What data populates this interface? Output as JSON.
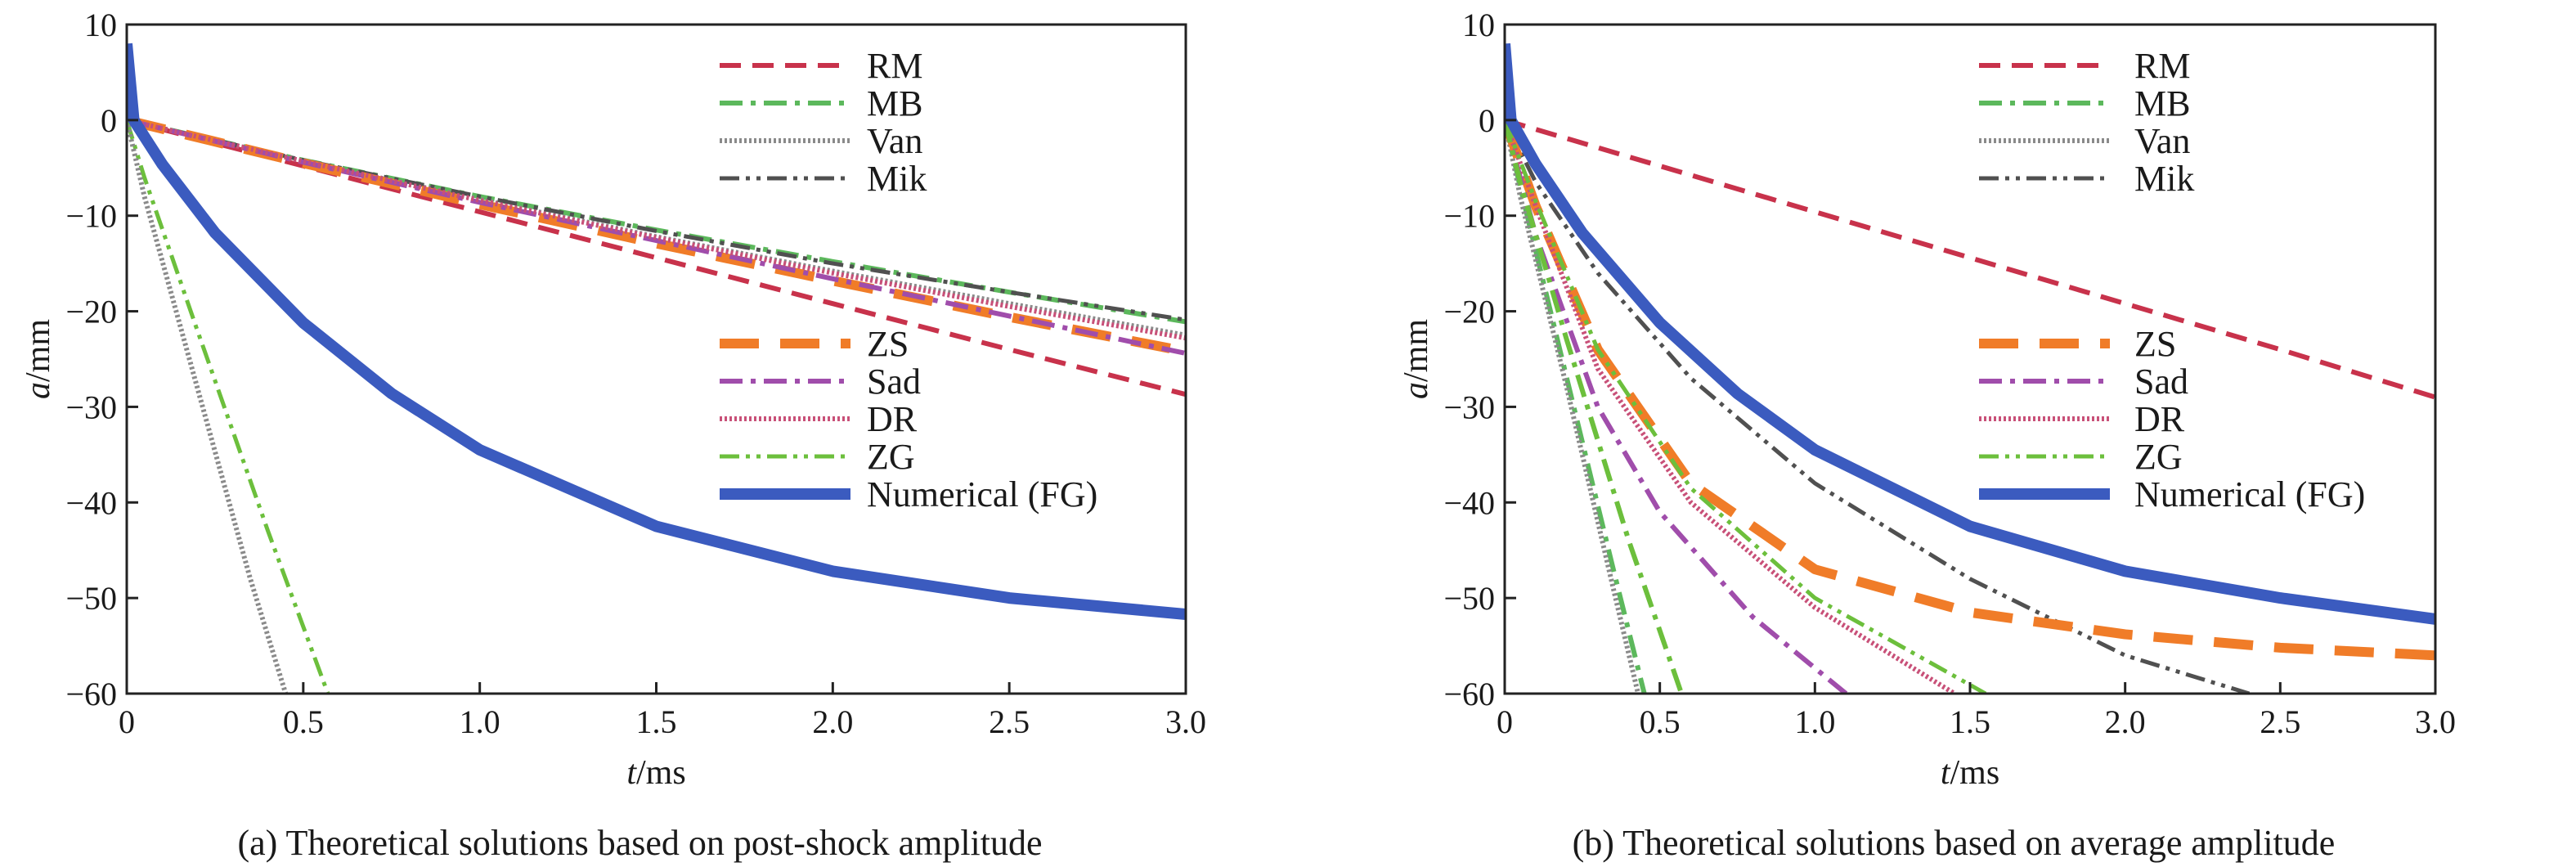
{
  "chart_data": [
    {
      "type": "line",
      "caption": "(a) Theoretical solutions based on post-shock amplitude",
      "xlabel_italic": "t",
      "xlabel_unit": "/ms",
      "ylabel_italic": "a",
      "ylabel_unit": "/mm",
      "xlim": [
        0,
        3.0
      ],
      "ylim": [
        -60,
        10
      ],
      "xticks": [
        "0",
        "0.5",
        "1.0",
        "1.5",
        "2.0",
        "2.5",
        "3.0"
      ],
      "yticks": [
        "10",
        "0",
        "−10",
        "−20",
        "−30",
        "−40",
        "−50",
        "−60"
      ],
      "grid": false,
      "legend_groups": [
        {
          "placement": "top-right",
          "entries": [
            "RM",
            "MB",
            "Van",
            "Mik"
          ]
        },
        {
          "placement": "center-right",
          "entries": [
            "ZS",
            "Sad",
            "DR",
            "ZG",
            "Numerical (FG)"
          ]
        }
      ],
      "series": [
        {
          "name": "RM",
          "color": "#c8324b",
          "style": "dashed",
          "x": [
            0,
            0.5,
            1.0,
            1.5,
            2.0,
            2.5,
            3.0
          ],
          "y": [
            0,
            -4.8,
            -9.6,
            -14.4,
            -19.2,
            -24,
            -28.7
          ]
        },
        {
          "name": "MB",
          "color": "#5cb85c",
          "style": "dashdot",
          "x": [
            0,
            0.5,
            1.0,
            1.5,
            2.0,
            2.5,
            3.0
          ],
          "y": [
            0,
            -4.2,
            -8.0,
            -11.5,
            -14.8,
            -18.0,
            -21.1
          ]
        },
        {
          "name": "Van",
          "color": "#8a8a8a",
          "style": "dotted",
          "x": [
            0,
            0.5,
            1.0,
            1.5,
            2.0,
            2.5,
            3.0
          ],
          "y": [
            0,
            -4.3,
            -8.3,
            -12.2,
            -15.8,
            -19.2,
            -22.5
          ]
        },
        {
          "name": "Mik",
          "color": "#505050",
          "style": "dashdotdot",
          "x": [
            0,
            0.5,
            1.0,
            1.5,
            2.0,
            2.5,
            3.0
          ],
          "y": [
            0,
            -4.2,
            -8.0,
            -11.6,
            -15.0,
            -18.0,
            -20.9
          ]
        },
        {
          "name": "ZS",
          "color": "#f07c28",
          "style": "longdash",
          "x": [
            0,
            0.5,
            1.0,
            1.5,
            2.0,
            2.5,
            3.0
          ],
          "y": [
            0,
            -4.5,
            -8.8,
            -12.9,
            -16.8,
            -20.6,
            -24.2
          ]
        },
        {
          "name": "Sad",
          "color": "#a04dab",
          "style": "dashdot",
          "x": [
            0,
            0.5,
            1.0,
            1.5,
            2.0,
            2.5,
            3.0
          ],
          "y": [
            0,
            -4.4,
            -8.6,
            -12.6,
            -16.6,
            -20.5,
            -24.4
          ]
        },
        {
          "name": "DR",
          "color": "#c85078",
          "style": "dotted",
          "x": [
            0,
            0.5,
            1.0,
            1.5,
            2.0,
            2.5,
            3.0
          ],
          "y": [
            0,
            -4.3,
            -8.4,
            -12.3,
            -16.0,
            -19.5,
            -22.8
          ]
        },
        {
          "name": "ZG",
          "color": "#6cbf3c",
          "style": "dashdotdot",
          "x": [
            0,
            0.05,
            0.2,
            0.4,
            0.57
          ],
          "y": [
            0,
            -6,
            -22,
            -43,
            -60
          ]
        },
        {
          "name": "Van",
          "color": "#8a8a8a",
          "style": "dotted",
          "x": [
            0,
            0.05,
            0.2,
            0.35,
            0.45
          ],
          "y": [
            0,
            -8,
            -28,
            -48,
            -60
          ]
        },
        {
          "name": "Numerical (FG)",
          "color": "#3b5bbf",
          "style": "solid-thick",
          "x": [
            0,
            0.02,
            0.1,
            0.25,
            0.5,
            0.75,
            1.0,
            1.5,
            2.0,
            2.5,
            3.0
          ],
          "y": [
            8,
            0,
            -4.6,
            -11.8,
            -21.2,
            -28.6,
            -34.5,
            -42.5,
            -47.2,
            -50.0,
            -51.7
          ]
        }
      ]
    },
    {
      "type": "line",
      "caption": "(b) Theoretical solutions based on average amplitude",
      "xlabel_italic": "t",
      "xlabel_unit": "/ms",
      "ylabel_italic": "a",
      "ylabel_unit": "/mm",
      "xlim": [
        0,
        3.0
      ],
      "ylim": [
        -60,
        10
      ],
      "xticks": [
        "0",
        "0.5",
        "1.0",
        "1.5",
        "2.0",
        "2.5",
        "3.0"
      ],
      "yticks": [
        "10",
        "0",
        "−10",
        "−20",
        "−30",
        "−40",
        "−50",
        "−60"
      ],
      "grid": false,
      "legend_groups": [
        {
          "placement": "top-right",
          "entries": [
            "RM",
            "MB",
            "Van",
            "Mik"
          ]
        },
        {
          "placement": "center-right",
          "entries": [
            "ZS",
            "Sad",
            "DR",
            "ZG",
            "Numerical (FG)"
          ]
        }
      ],
      "series": [
        {
          "name": "RM",
          "color": "#c8324b",
          "style": "dashed",
          "x": [
            0,
            0.5,
            1.0,
            1.5,
            2.0,
            2.5,
            3.0
          ],
          "y": [
            0,
            -4.8,
            -9.6,
            -14.4,
            -19.2,
            -24,
            -29
          ]
        },
        {
          "name": "MB",
          "color": "#5cb85c",
          "style": "dashdot",
          "x": [
            0,
            0.05,
            0.2,
            0.35,
            0.45
          ],
          "y": [
            0,
            -7,
            -27,
            -47,
            -60
          ]
        },
        {
          "name": "Van",
          "color": "#8a8a8a",
          "style": "dotted",
          "x": [
            0,
            0.05,
            0.2,
            0.35,
            0.43
          ],
          "y": [
            0,
            -8,
            -28,
            -49,
            -60
          ]
        },
        {
          "name": "Mik",
          "color": "#505050",
          "style": "dashdotdot",
          "x": [
            0,
            0.1,
            0.3,
            0.6,
            1.0,
            1.5,
            2.0,
            2.4
          ],
          "y": [
            0,
            -6.5,
            -16,
            -27,
            -38,
            -48,
            -56,
            -60
          ]
        },
        {
          "name": "ZS",
          "color": "#f07c28",
          "style": "longdash",
          "x": [
            0,
            0.1,
            0.3,
            0.6,
            1.0,
            1.5,
            2.0,
            2.5,
            3.0
          ],
          "y": [
            0,
            -9,
            -24,
            -38,
            -47,
            -51.5,
            -53.8,
            -55.2,
            -56
          ]
        },
        {
          "name": "Sad",
          "color": "#a04dab",
          "style": "dashdot",
          "x": [
            0,
            0.1,
            0.3,
            0.5,
            0.8,
            1.1
          ],
          "y": [
            0,
            -12,
            -30,
            -41,
            -52,
            -60
          ]
        },
        {
          "name": "DR",
          "color": "#c85078",
          "style": "dotted",
          "x": [
            0,
            0.1,
            0.3,
            0.6,
            1.0,
            1.45
          ],
          "y": [
            0,
            -9,
            -26,
            -40,
            -51,
            -60
          ]
        },
        {
          "name": "ZG",
          "color": "#6cbf3c",
          "style": "dashdotdot",
          "x": [
            0,
            0.1,
            0.3,
            0.6,
            1.0,
            1.55
          ],
          "y": [
            0,
            -8.5,
            -24,
            -38.5,
            -50,
            -60
          ]
        },
        {
          "name": "ZG",
          "color": "#6cbf3c",
          "style": "dashdot",
          "x": [
            0,
            0.05,
            0.2,
            0.4,
            0.57
          ],
          "y": [
            0,
            -6.5,
            -23,
            -44,
            -60
          ]
        },
        {
          "name": "Numerical (FG)",
          "color": "#3b5bbf",
          "style": "solid-thick",
          "x": [
            0,
            0.02,
            0.1,
            0.25,
            0.5,
            0.75,
            1.0,
            1.5,
            2.0,
            2.5,
            3.0
          ],
          "y": [
            8,
            0,
            -4.6,
            -11.8,
            -21.2,
            -28.6,
            -34.5,
            -42.5,
            -47.2,
            -50.0,
            -52.2
          ]
        }
      ]
    }
  ],
  "colors": {
    "axes": "#222222",
    "numerical": "#3b5bbf"
  }
}
